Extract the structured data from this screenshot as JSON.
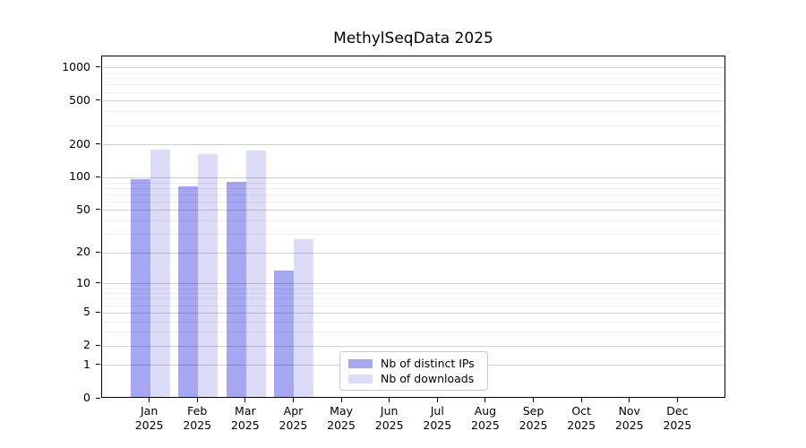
{
  "figure": {
    "background": "#ffffff"
  },
  "chart_data": {
    "type": "bar",
    "title": "MethylSeqData 2025",
    "y_scale": "log1p",
    "ylim": [
      0,
      1275
    ],
    "y_ticks": [
      0,
      1,
      2,
      5,
      10,
      20,
      50,
      100,
      200,
      500,
      1000
    ],
    "x_months": [
      "Jan",
      "Feb",
      "Mar",
      "Apr",
      "May",
      "Jun",
      "Jul",
      "Aug",
      "Sep",
      "Oct",
      "Nov",
      "Dec"
    ],
    "year": "2025",
    "grid": true,
    "legend_position": "lower center",
    "series": [
      {
        "name": "Nb of distinct IPs",
        "color": "#a6a6f2",
        "values": [
          94,
          81,
          88,
          13,
          0,
          0,
          0,
          0,
          0,
          0,
          0,
          0
        ]
      },
      {
        "name": "Nb of downloads",
        "color": "#dcdcf9",
        "values": [
          175,
          160,
          172,
          26,
          0,
          0,
          0,
          0,
          0,
          0,
          0,
          0
        ]
      }
    ]
  },
  "style": {
    "axis_color": "#000000",
    "text_color": "#000000",
    "grid_major": "rgba(0,0,0,0.18)",
    "grid_minor": "rgba(0,0,0,0.06)",
    "legend_border": "#c8c8c8",
    "legend_bg": "rgba(255,255,255,0.92)"
  }
}
